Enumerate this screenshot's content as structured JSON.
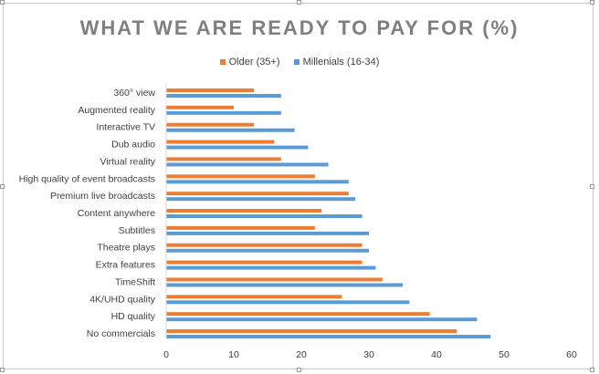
{
  "chart_data": {
    "type": "bar",
    "orientation": "horizontal",
    "title": "WHAT WE ARE READY TO PAY FOR (%)",
    "categories": [
      "360° view",
      "Augmented reality",
      "Interactive TV",
      "Dub audio",
      "Virtual reality",
      "High quality of event broadcasts",
      "Premium live broadcasts",
      "Content anywhere",
      "Subtitles",
      "Theatre plays",
      "Extra features",
      "TimeShift",
      "4K/UHD quality",
      "HD quality",
      "No commercials"
    ],
    "series": [
      {
        "name": "Older (35+)",
        "color": "#ed7d31",
        "values": [
          13,
          10,
          13,
          16,
          17,
          22,
          27,
          23,
          22,
          29,
          29,
          32,
          26,
          39,
          43
        ]
      },
      {
        "name": "Millenials (16-34)",
        "color": "#5b9bd5",
        "values": [
          17,
          17,
          19,
          21,
          24,
          27,
          28,
          29,
          30,
          30,
          31,
          35,
          36,
          46,
          48
        ]
      }
    ],
    "xlim": [
      0,
      60
    ],
    "xticks": [
      0,
      10,
      20,
      30,
      40,
      50,
      60
    ],
    "legend_position": "top",
    "grid": false
  }
}
